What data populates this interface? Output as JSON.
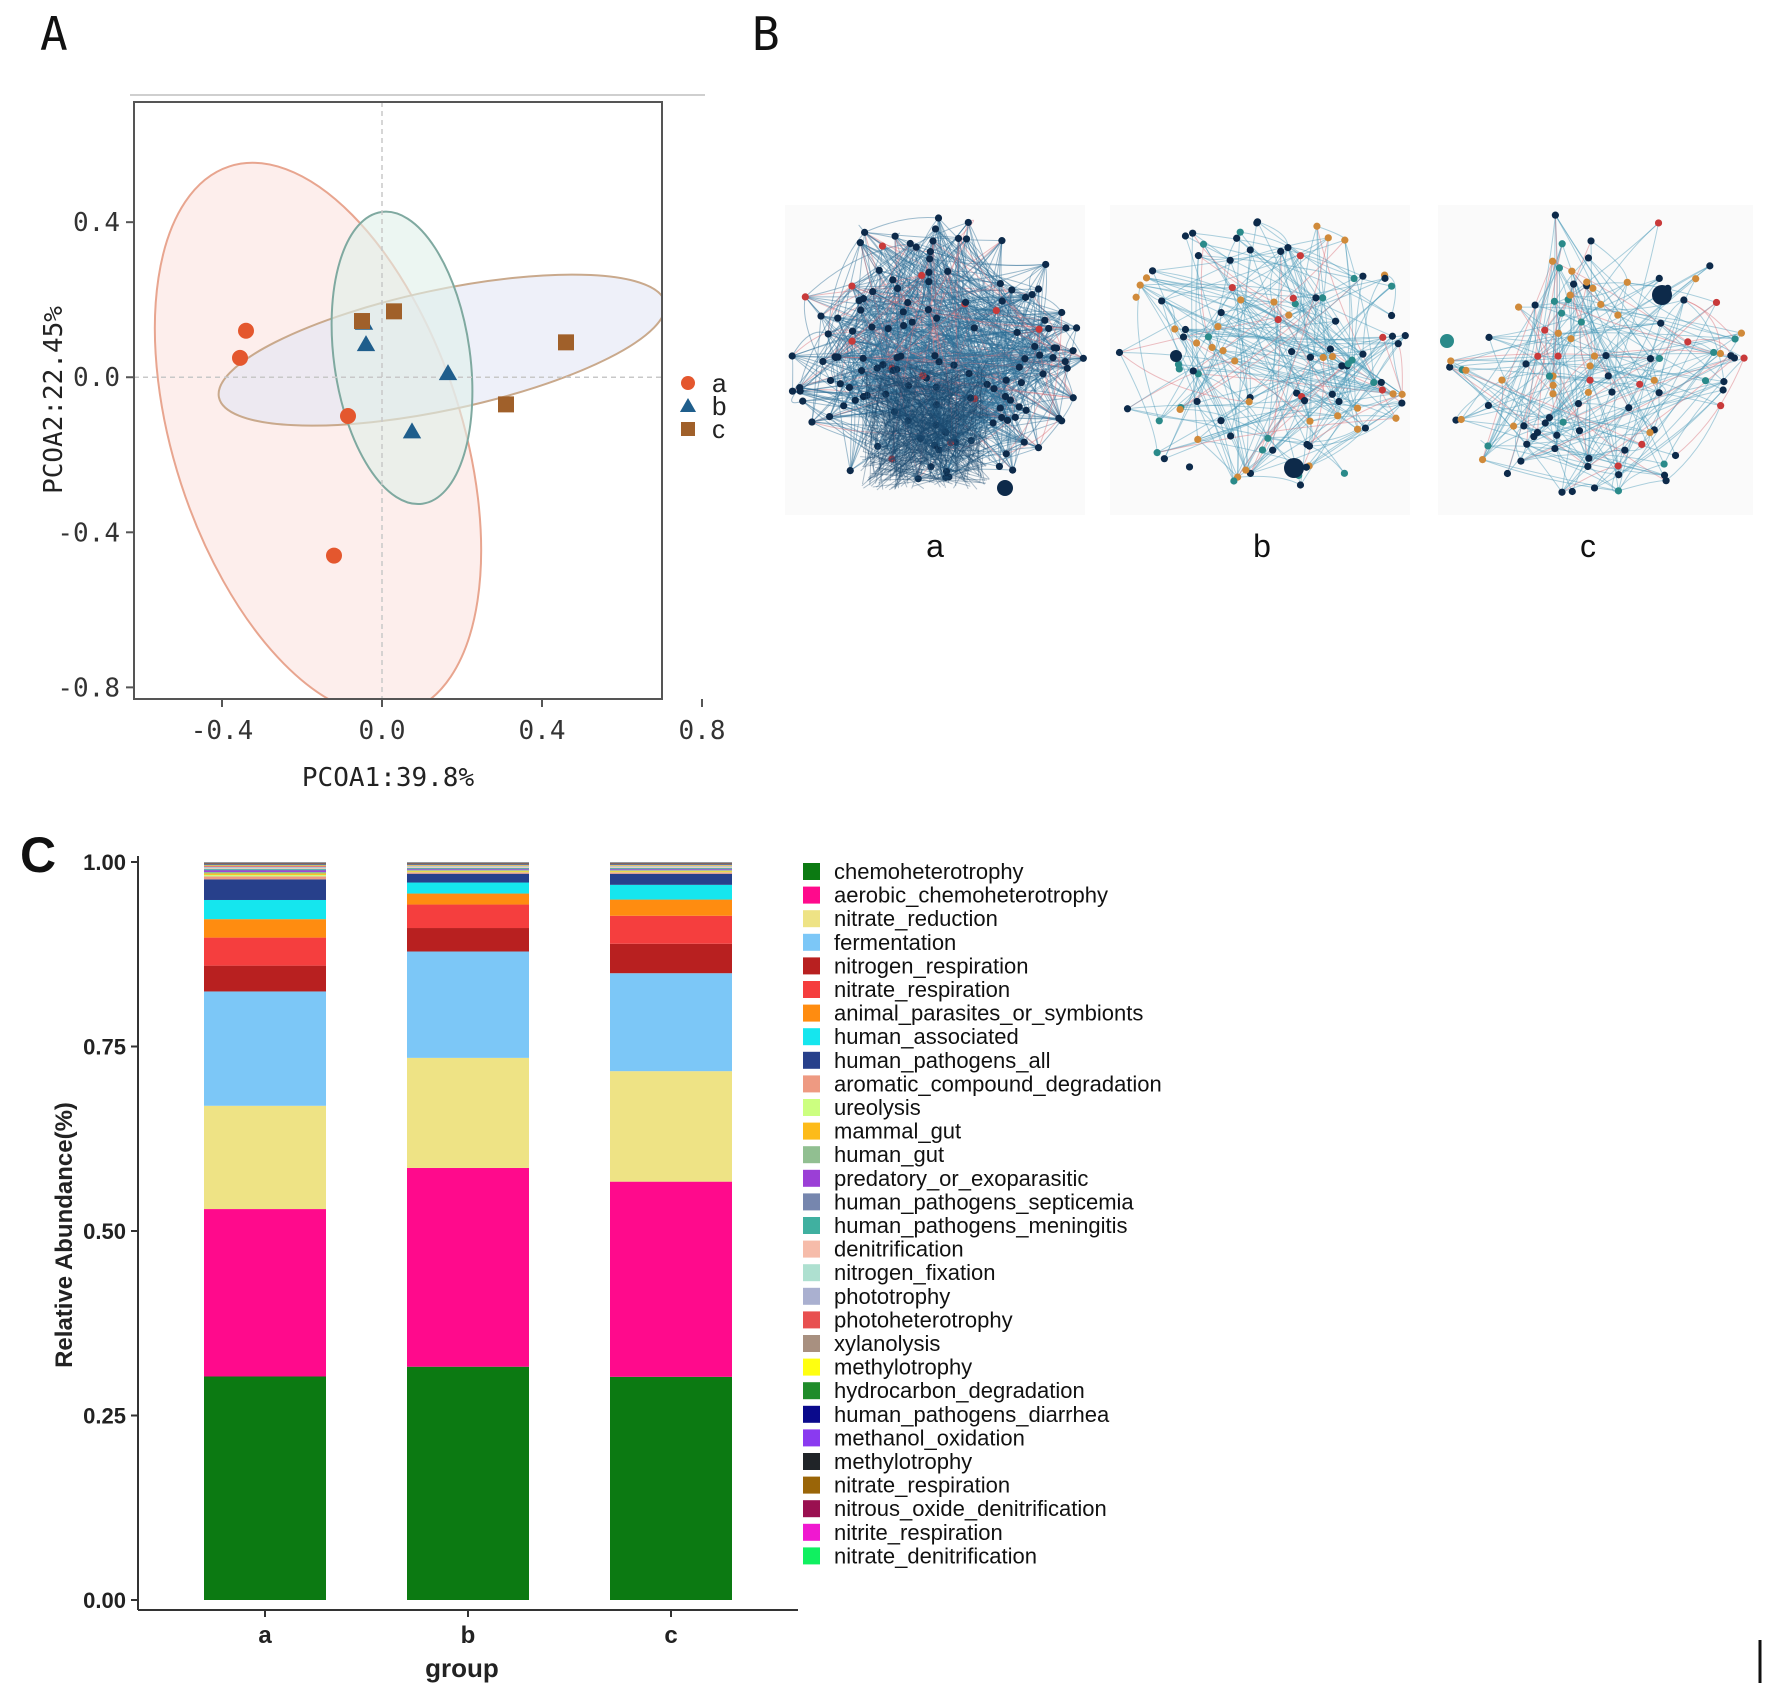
{
  "panel_labels": {
    "a": "A",
    "b": "B",
    "c": "C"
  },
  "colors": {
    "group_a": "#e4572e",
    "group_b": "#1f5e8c",
    "group_c": "#a0602a",
    "ellipse_a_fill": "#fbe3df",
    "ellipse_a_stroke": "#e8a58f",
    "ellipse_b_fill": "#dff0ea",
    "ellipse_b_stroke": "#7fa9a0",
    "ellipse_c_fill": "#e3e6f5",
    "ellipse_c_stroke": "#c9a98c"
  },
  "chart_data": [
    {
      "type": "scatter",
      "panel": "A",
      "xlabel": "PCOA1:39.8%",
      "ylabel": "PCOA2:22.45%",
      "xlim": [
        -0.62,
        0.7
      ],
      "ylim": [
        -0.83,
        0.71
      ],
      "xticks": [
        -0.4,
        0.0,
        0.4,
        0.8
      ],
      "xtick_labels": [
        "-0.4",
        "0.0",
        "0.4",
        "0.8"
      ],
      "yticks": [
        0.4,
        0.0,
        -0.4,
        -0.8
      ],
      "ytick_labels": [
        "0.4",
        "0.0",
        "-0.4",
        "-0.8"
      ],
      "legend": "right",
      "series": [
        {
          "name": "a",
          "marker": "circle",
          "color": "#e4572e",
          "points": [
            [
              -0.34,
              0.12
            ],
            [
              -0.355,
              0.05
            ],
            [
              -0.085,
              -0.1
            ],
            [
              -0.12,
              -0.46
            ]
          ]
        },
        {
          "name": "b",
          "marker": "triangle",
          "color": "#1f5e8c",
          "points": [
            [
              -0.045,
              0.14
            ],
            [
              -0.04,
              0.085
            ],
            [
              0.165,
              0.01
            ],
            [
              0.075,
              -0.14
            ]
          ]
        },
        {
          "name": "c",
          "marker": "square",
          "color": "#a0602a",
          "points": [
            [
              -0.05,
              0.145
            ],
            [
              0.03,
              0.17
            ],
            [
              0.46,
              0.09
            ],
            [
              0.31,
              -0.07
            ]
          ]
        }
      ],
      "ellipses": [
        {
          "group": "a",
          "cx": -0.16,
          "cy": -0.16,
          "rx": 0.36,
          "ry": 0.74,
          "angle_deg": -18
        },
        {
          "group": "c",
          "cx": 0.15,
          "cy": 0.07,
          "rx": 0.57,
          "ry": 0.155,
          "angle_deg": -12
        },
        {
          "group": "b",
          "cx": 0.05,
          "cy": 0.05,
          "rx": 0.17,
          "ry": 0.38,
          "angle_deg": -8
        }
      ]
    },
    {
      "type": "network",
      "panel": "B",
      "networks": [
        {
          "label": "a"
        },
        {
          "label": "b"
        },
        {
          "label": "c"
        }
      ],
      "node_colors": [
        "#0d2a4a",
        "#d08a3a",
        "#2a8a8a",
        "#c83a3a",
        "#8a2a6a"
      ]
    },
    {
      "type": "bar",
      "stacked": true,
      "panel": "C",
      "categories": [
        "a",
        "b",
        "c"
      ],
      "xlabel": "group",
      "ylabel": "Relative Abundance(%)",
      "ylim": [
        0,
        1
      ],
      "yticks": [
        0.0,
        0.25,
        0.5,
        0.75,
        1.0
      ],
      "ytick_labels": [
        "0.00",
        "0.25",
        "0.50",
        "0.75",
        "1.00"
      ],
      "legend": "right",
      "series": [
        {
          "name": "chemoheterotrophy",
          "color": "#0c7a12",
          "values": [
            0.303,
            0.318,
            0.303
          ]
        },
        {
          "name": "aerobic_chemoheterotrophy",
          "color": "#ff0a8c",
          "values": [
            0.227,
            0.271,
            0.265
          ]
        },
        {
          "name": "nitrate_reduction",
          "color": "#eee385",
          "values": [
            0.14,
            0.15,
            0.15
          ]
        },
        {
          "name": "fermentation",
          "color": "#7cc7f7",
          "values": [
            0.155,
            0.145,
            0.133
          ]
        },
        {
          "name": "nitrogen_respiration",
          "color": "#b82020",
          "values": [
            0.035,
            0.032,
            0.04
          ]
        },
        {
          "name": "nitrate_respiration",
          "color": "#f53e3e",
          "values": [
            0.038,
            0.032,
            0.038
          ]
        },
        {
          "name": "animal_parasites_or_symbionts",
          "color": "#ff8c10",
          "values": [
            0.025,
            0.015,
            0.022
          ]
        },
        {
          "name": "human_associated",
          "color": "#15e6ee",
          "values": [
            0.026,
            0.015,
            0.02
          ]
        },
        {
          "name": "human_pathogens_all",
          "color": "#27408b",
          "values": [
            0.028,
            0.012,
            0.015
          ]
        },
        {
          "name": "aromatic_compound_degradation",
          "color": "#ee9a82",
          "values": [
            0.004,
            0.002,
            0.002
          ]
        },
        {
          "name": "ureolysis",
          "color": "#ccff80",
          "values": [
            0.002,
            0.001,
            0.001
          ]
        },
        {
          "name": "mammal_gut",
          "color": "#fdbb1a",
          "values": [
            0.002,
            0.001,
            0.001
          ]
        },
        {
          "name": "human_gut",
          "color": "#91bf91",
          "values": [
            0.002,
            0.001,
            0.001
          ]
        },
        {
          "name": "predatory_or_exoparasitic",
          "color": "#9b3fd6",
          "values": [
            0.002,
            0.001,
            0.001
          ]
        },
        {
          "name": "human_pathogens_septicemia",
          "color": "#7686ae",
          "values": [
            0.001,
            0.001,
            0.001
          ]
        },
        {
          "name": "human_pathogens_meningitis",
          "color": "#40b0a0",
          "values": [
            0.001,
            0.001,
            0.001
          ]
        },
        {
          "name": "denitrification",
          "color": "#f6bcaa",
          "values": [
            0.001,
            0.001,
            0.001
          ]
        },
        {
          "name": "nitrogen_fixation",
          "color": "#aee0d0",
          "values": [
            0.001,
            0.001,
            0.001
          ]
        },
        {
          "name": "phototrophy",
          "color": "#aab0d0",
          "values": [
            0.001,
            0.0005,
            0.0005
          ]
        },
        {
          "name": "photoheterotrophy",
          "color": "#e85050",
          "values": [
            0.001,
            0.0005,
            0.0005
          ]
        },
        {
          "name": "xylanolysis",
          "color": "#a89080",
          "values": [
            0.001,
            0.0005,
            0.0005
          ]
        },
        {
          "name": "methylotrophy",
          "color": "#ffff10",
          "values": [
            0.0005,
            0.0005,
            0.0005
          ]
        },
        {
          "name": "hydrocarbon_degradation",
          "color": "#1f8c2a",
          "values": [
            0.0005,
            0.0005,
            0.0005
          ]
        },
        {
          "name": "human_pathogens_diarrhea",
          "color": "#0a0a8c",
          "values": [
            0.0005,
            0.0005,
            0.0005
          ]
        },
        {
          "name": "methanol_oxidation",
          "color": "#8a3af0",
          "values": [
            0.0005,
            0.0005,
            0.0005
          ]
        },
        {
          "name": "methylotrophy",
          "color": "#202428",
          "values": [
            0.0005,
            0.0005,
            0.0005
          ]
        },
        {
          "name": "nitrate_respiration",
          "color": "#9a6508",
          "values": [
            0.0005,
            0.0005,
            0.0005
          ]
        },
        {
          "name": "nitrous_oxide_denitrification",
          "color": "#9a1050",
          "values": [
            0.0005,
            0.0005,
            0.0005
          ]
        },
        {
          "name": "nitrite_respiration",
          "color": "#f018d0",
          "values": [
            0.0005,
            0.0005,
            0.0005
          ]
        },
        {
          "name": "nitrate_denitrification",
          "color": "#10f060",
          "values": [
            0.0005,
            0.0005,
            0.0005
          ]
        }
      ]
    }
  ]
}
